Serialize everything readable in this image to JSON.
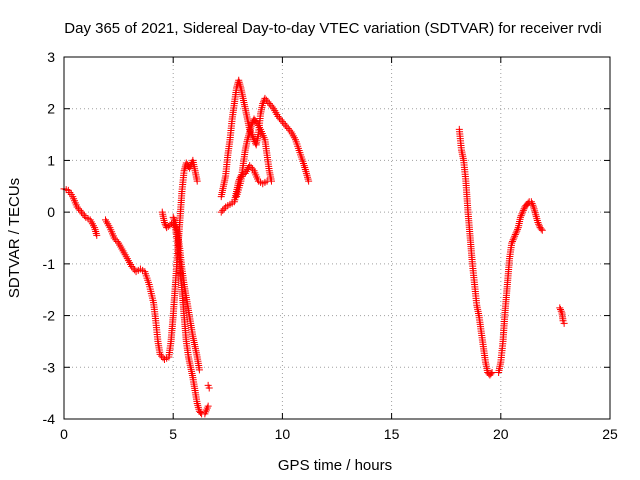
{
  "chart_data": {
    "type": "scatter",
    "title": "Day 365 of 2021, Sidereal Day-to-day VTEC variation (SDTVAR) for receiver rvdi",
    "xlabel": "GPS time / hours",
    "ylabel": "SDTVAR / TECUs",
    "xlim": [
      0,
      25
    ],
    "ylim": [
      -4,
      3
    ],
    "xticks": [
      0,
      5,
      10,
      15,
      20,
      25
    ],
    "yticks": [
      -4,
      -3,
      -2,
      -1,
      0,
      1,
      2,
      3
    ],
    "xtick_labels": [
      "0",
      "5",
      "10",
      "15",
      "20",
      "25"
    ],
    "ytick_labels": [
      "-4",
      "-3",
      "-2",
      "-1",
      "0",
      "1",
      "2",
      "3"
    ],
    "grid": true,
    "marker": "+",
    "marker_color": "#ff0000",
    "series": [
      {
        "segments": [
          [
            [
              0.0,
              0.45
            ],
            [
              0.2,
              0.42
            ],
            [
              0.4,
              0.3
            ],
            [
              0.6,
              0.1
            ],
            [
              0.8,
              0.0
            ],
            [
              1.0,
              -0.1
            ],
            [
              1.2,
              -0.15
            ],
            [
              1.4,
              -0.3
            ],
            [
              1.5,
              -0.45
            ]
          ],
          [
            [
              1.9,
              -0.15
            ],
            [
              2.1,
              -0.3
            ],
            [
              2.3,
              -0.5
            ],
            [
              2.5,
              -0.6
            ],
            [
              2.7,
              -0.75
            ],
            [
              2.9,
              -0.9
            ],
            [
              3.1,
              -1.05
            ],
            [
              3.3,
              -1.15
            ],
            [
              3.5,
              -1.1
            ],
            [
              3.7,
              -1.15
            ],
            [
              3.9,
              -1.4
            ],
            [
              4.1,
              -1.75
            ],
            [
              4.2,
              -2.1
            ],
            [
              4.3,
              -2.5
            ],
            [
              4.4,
              -2.75
            ],
            [
              4.6,
              -2.85
            ],
            [
              4.8,
              -2.8
            ],
            [
              4.9,
              -2.5
            ],
            [
              5.0,
              -2.0
            ],
            [
              5.1,
              -1.4
            ],
            [
              5.2,
              -0.8
            ],
            [
              5.3,
              -0.2
            ],
            [
              5.4,
              0.4
            ],
            [
              5.5,
              0.8
            ],
            [
              5.6,
              0.95
            ],
            [
              5.75,
              0.85
            ],
            [
              5.9,
              1.0
            ],
            [
              6.0,
              0.8
            ],
            [
              6.1,
              0.6
            ]
          ],
          [
            [
              4.5,
              0.0
            ],
            [
              4.6,
              -0.2
            ],
            [
              4.7,
              -0.3
            ],
            [
              4.85,
              -0.25
            ],
            [
              5.0,
              -0.2
            ],
            [
              5.1,
              -0.3
            ],
            [
              5.2,
              -0.6
            ],
            [
              5.3,
              -1.0
            ],
            [
              5.4,
              -1.5
            ],
            [
              5.5,
              -2.0
            ],
            [
              5.6,
              -2.5
            ],
            [
              5.7,
              -2.8
            ],
            [
              5.8,
              -3.0
            ],
            [
              5.9,
              -3.2
            ],
            [
              6.0,
              -3.45
            ],
            [
              6.1,
              -3.7
            ],
            [
              6.2,
              -3.85
            ],
            [
              6.3,
              -3.9
            ],
            [
              6.45,
              -3.9
            ],
            [
              6.6,
              -3.75
            ]
          ],
          [
            [
              5.0,
              -0.1
            ],
            [
              5.1,
              -0.2
            ],
            [
              5.2,
              -0.4
            ],
            [
              5.3,
              -0.7
            ],
            [
              5.4,
              -1.1
            ],
            [
              5.5,
              -1.4
            ],
            [
              5.6,
              -1.65
            ],
            [
              5.7,
              -1.9
            ],
            [
              5.8,
              -2.15
            ],
            [
              5.9,
              -2.4
            ],
            [
              6.0,
              -2.6
            ],
            [
              6.1,
              -2.8
            ],
            [
              6.2,
              -3.05
            ]
          ],
          [
            [
              6.6,
              -3.35
            ],
            [
              6.65,
              -3.4
            ]
          ],
          [
            [
              7.2,
              0.0
            ],
            [
              7.4,
              0.1
            ],
            [
              7.6,
              0.15
            ],
            [
              7.8,
              0.2
            ],
            [
              7.9,
              0.4
            ],
            [
              8.0,
              0.6
            ],
            [
              8.1,
              0.7
            ],
            [
              8.3,
              0.75
            ],
            [
              8.5,
              0.9
            ],
            [
              8.7,
              0.8
            ],
            [
              8.9,
              0.6
            ],
            [
              9.1,
              0.55
            ],
            [
              9.3,
              0.6
            ]
          ],
          [
            [
              7.2,
              0.3
            ],
            [
              7.4,
              0.7
            ],
            [
              7.5,
              1.1
            ],
            [
              7.6,
              1.4
            ],
            [
              7.7,
              1.8
            ],
            [
              7.8,
              2.1
            ],
            [
              7.9,
              2.4
            ],
            [
              8.0,
              2.55
            ],
            [
              8.1,
              2.4
            ],
            [
              8.2,
              2.2
            ],
            [
              8.3,
              2.0
            ],
            [
              8.4,
              1.8
            ],
            [
              8.5,
              1.6
            ],
            [
              8.6,
              1.5
            ],
            [
              8.7,
              1.4
            ],
            [
              8.8,
              1.3
            ],
            [
              8.9,
              1.5
            ],
            [
              9.0,
              1.9
            ],
            [
              9.1,
              2.1
            ],
            [
              9.2,
              2.2
            ],
            [
              9.4,
              2.1
            ],
            [
              9.6,
              2.0
            ],
            [
              9.8,
              1.85
            ],
            [
              10.0,
              1.75
            ],
            [
              10.2,
              1.65
            ],
            [
              10.4,
              1.55
            ],
            [
              10.6,
              1.4
            ],
            [
              10.8,
              1.15
            ],
            [
              11.0,
              0.9
            ],
            [
              11.1,
              0.75
            ],
            [
              11.2,
              0.6
            ]
          ],
          [
            [
              7.9,
              0.3
            ],
            [
              8.1,
              0.6
            ],
            [
              8.2,
              0.9
            ],
            [
              8.3,
              1.2
            ],
            [
              8.4,
              1.4
            ],
            [
              8.5,
              1.55
            ],
            [
              8.6,
              1.7
            ],
            [
              8.7,
              1.8
            ],
            [
              8.8,
              1.75
            ],
            [
              9.0,
              1.6
            ],
            [
              9.2,
              1.4
            ],
            [
              9.3,
              1.1
            ],
            [
              9.4,
              0.8
            ],
            [
              9.5,
              0.6
            ]
          ],
          [
            [
              18.1,
              1.6
            ],
            [
              18.2,
              1.2
            ],
            [
              18.3,
              1.0
            ],
            [
              18.4,
              0.6
            ],
            [
              18.5,
              0.0
            ],
            [
              18.6,
              -0.5
            ],
            [
              18.7,
              -1.0
            ],
            [
              18.8,
              -1.4
            ],
            [
              18.9,
              -1.8
            ],
            [
              19.0,
              -2.0
            ],
            [
              19.1,
              -2.3
            ],
            [
              19.2,
              -2.6
            ],
            [
              19.3,
              -2.9
            ],
            [
              19.4,
              -3.1
            ],
            [
              19.5,
              -3.15
            ],
            [
              19.6,
              -3.1
            ]
          ],
          [
            [
              19.9,
              -3.1
            ],
            [
              20.0,
              -2.9
            ],
            [
              20.1,
              -2.5
            ],
            [
              20.2,
              -1.9
            ],
            [
              20.3,
              -1.4
            ],
            [
              20.4,
              -0.9
            ],
            [
              20.5,
              -0.6
            ],
            [
              20.6,
              -0.5
            ],
            [
              20.7,
              -0.4
            ],
            [
              20.8,
              -0.3
            ],
            [
              20.9,
              -0.1
            ],
            [
              21.0,
              0.0
            ],
            [
              21.1,
              0.1
            ],
            [
              21.2,
              0.15
            ],
            [
              21.3,
              0.2
            ],
            [
              21.4,
              0.2
            ],
            [
              21.5,
              0.1
            ],
            [
              21.6,
              -0.05
            ],
            [
              21.7,
              -0.2
            ],
            [
              21.8,
              -0.3
            ],
            [
              21.9,
              -0.35
            ]
          ],
          [
            [
              22.7,
              -1.85
            ],
            [
              22.8,
              -1.95
            ],
            [
              22.85,
              -2.1
            ],
            [
              22.9,
              -2.15
            ]
          ]
        ]
      }
    ]
  }
}
